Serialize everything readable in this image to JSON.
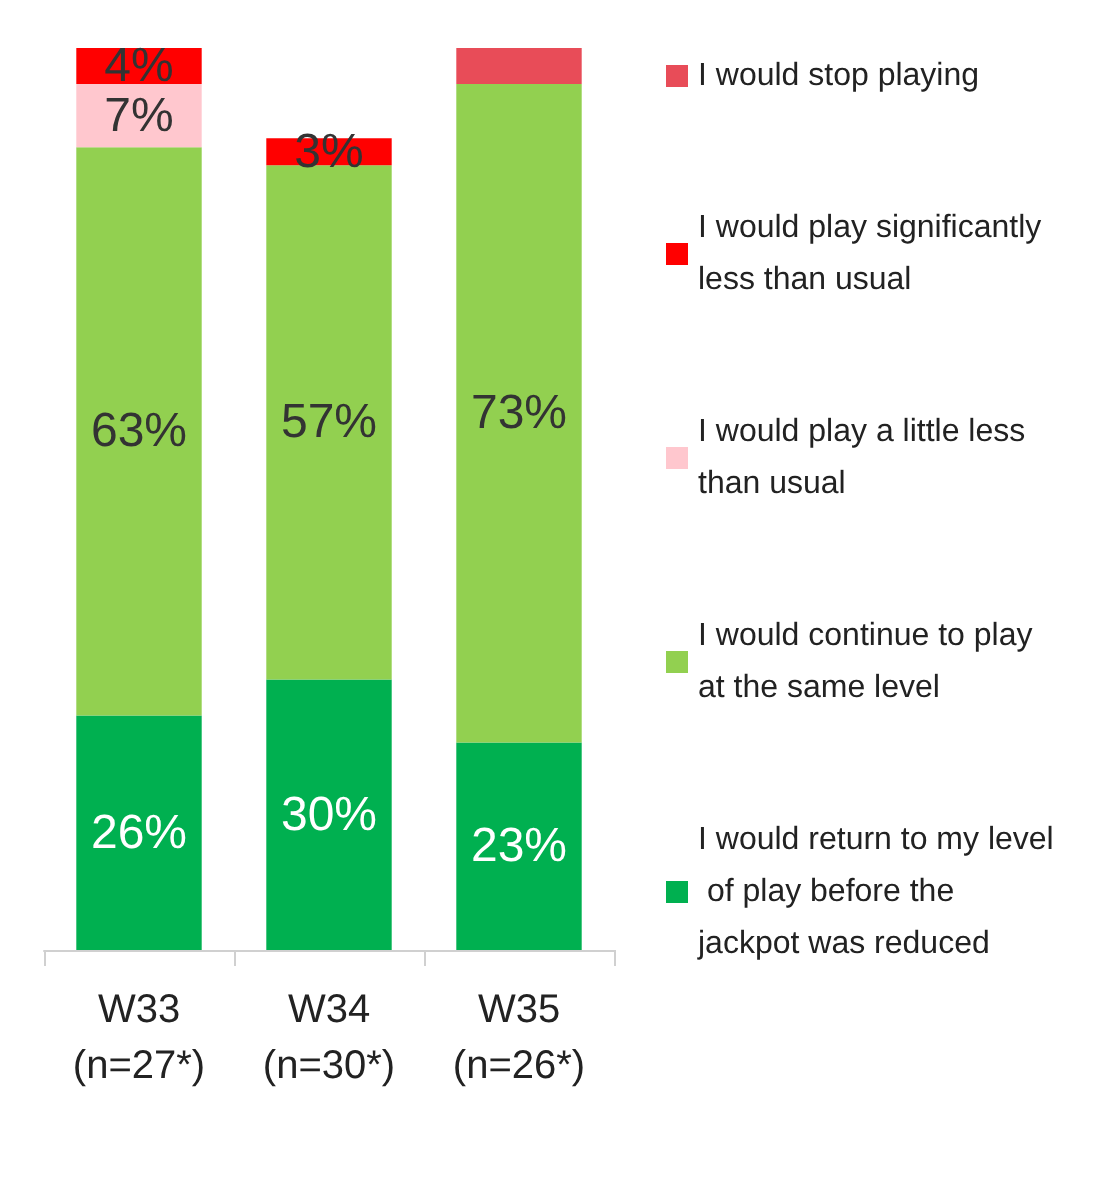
{
  "chart_data": {
    "type": "bar",
    "stacked": true,
    "categories": [
      "W33\n(n=27*)",
      "W34\n(n=30*)",
      "W35\n(n=26*)"
    ],
    "legend": "right",
    "grid": false,
    "series": [
      {
        "name": "I would return to my level of play before the jackpot was reduced",
        "color": "#00b050",
        "values": [
          26,
          30,
          23
        ],
        "value_labels": [
          "26%",
          "30%",
          "23%"
        ]
      },
      {
        "name": "I would continue to play at the same level",
        "color": "#92d050",
        "values": [
          63,
          57,
          73
        ],
        "value_labels": [
          "63%",
          "57%",
          "73%"
        ]
      },
      {
        "name": "I would play a little less than usual",
        "color": "#ffc7ce",
        "values": [
          7,
          0,
          0
        ],
        "value_labels": [
          "7%",
          null,
          null
        ]
      },
      {
        "name": "I would play significantly less than usual",
        "color": "#ff0000",
        "values": [
          4,
          3,
          0
        ],
        "value_labels": [
          "4%",
          "3%",
          null
        ]
      },
      {
        "name": "I would stop playing",
        "color": "#e84c58",
        "values": [
          0,
          0,
          4
        ],
        "value_labels": [
          null,
          null,
          null
        ]
      }
    ]
  }
}
